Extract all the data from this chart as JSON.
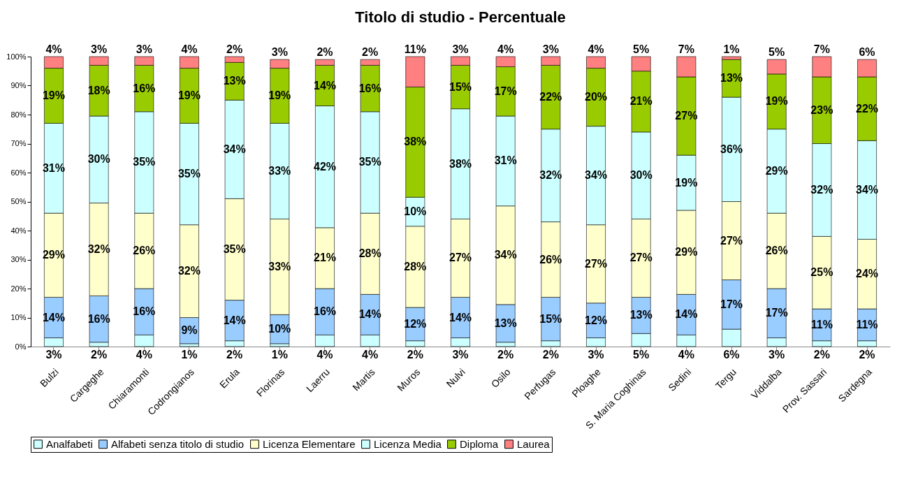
{
  "chart_data": {
    "type": "bar",
    "stacked": true,
    "title": "Titolo di studio - Percentuale",
    "legend": "bottom",
    "categories": [
      "Bulzi",
      "Cargeghe",
      "Chiaramonti",
      "Codrongianos",
      "Erula",
      "Florinas",
      "Laerru",
      "Martis",
      "Muros",
      "Nulvi",
      "Osilo",
      "Perfugas",
      "Ploaghe",
      "S. Maria Coghinas",
      "Sedini",
      "Tergu",
      "Viddalba",
      "Prov. Sassari",
      "Sardegna"
    ],
    "ylim": [
      0,
      100
    ],
    "yticks": [
      {
        "value": 0,
        "label": "0%"
      },
      {
        "value": 10,
        "label": "10%"
      },
      {
        "value": 20,
        "label": "20%"
      },
      {
        "value": 30,
        "label": "30%"
      },
      {
        "value": 40,
        "label": "40%"
      },
      {
        "value": 50,
        "label": "50%"
      },
      {
        "value": 60,
        "label": "60%"
      },
      {
        "value": 70,
        "label": "70%"
      },
      {
        "value": 80,
        "label": "80%"
      },
      {
        "value": 90,
        "label": "90%"
      },
      {
        "value": 100,
        "label": "100%"
      }
    ],
    "series": [
      {
        "name": "Analfabeti",
        "color": "#ccffff",
        "values": [
          3,
          1.5,
          4,
          1,
          2,
          1,
          4,
          4,
          2,
          3,
          1.5,
          2,
          3,
          4.5,
          4,
          6,
          3,
          2,
          2
        ],
        "value_labels": [
          "3%",
          "2%",
          "4%",
          "1%",
          "2%",
          "1%",
          "4%",
          "4%",
          "2%",
          "3%",
          "2%",
          "2%",
          "3%",
          "5%",
          "4%",
          "6%",
          "3%",
          "2%",
          "2%"
        ]
      },
      {
        "name": "Alfabeti senza titolo di studio",
        "color": "#99ccff",
        "values": [
          14,
          16,
          16,
          9,
          14,
          10,
          16,
          14,
          11.5,
          14,
          13,
          15,
          12,
          12.5,
          14,
          17,
          17,
          11,
          11
        ],
        "value_labels": [
          "14%",
          "16%",
          "16%",
          "9%",
          "14%",
          "10%",
          "16%",
          "14%",
          "12%",
          "14%",
          "13%",
          "15%",
          "12%",
          "13%",
          "14%",
          "17%",
          "17%",
          "11%",
          "11%"
        ]
      },
      {
        "name": "Licenza Elementare",
        "color": "#ffffcc",
        "values": [
          29,
          32,
          26,
          32,
          35,
          33,
          21,
          28,
          28,
          27,
          34,
          26,
          27,
          27,
          29,
          27,
          26,
          25,
          24
        ],
        "value_labels": [
          "29%",
          "32%",
          "26%",
          "32%",
          "35%",
          "33%",
          "21%",
          "28%",
          "28%",
          "27%",
          "34%",
          "26%",
          "27%",
          "27%",
          "29%",
          "27%",
          "26%",
          "25%",
          "24%"
        ]
      },
      {
        "name": "Licenza Media",
        "color": "#ccffff",
        "values": [
          31,
          30,
          35,
          35,
          34,
          33,
          42,
          35,
          10,
          38,
          31,
          32,
          34,
          30,
          19,
          36,
          29,
          32,
          34
        ],
        "value_labels": [
          "31%",
          "30%",
          "35%",
          "35%",
          "34%",
          "33%",
          "42%",
          "35%",
          "10%",
          "38%",
          "31%",
          "32%",
          "34%",
          "30%",
          "19%",
          "36%",
          "29%",
          "32%",
          "34%"
        ]
      },
      {
        "name": "Diploma",
        "color": "#99cc00",
        "values": [
          19,
          17.5,
          16,
          19,
          13,
          19,
          14,
          16,
          38,
          15,
          17,
          22,
          20,
          21,
          27,
          13,
          19,
          23,
          22
        ],
        "value_labels": [
          "19%",
          "18%",
          "16%",
          "19%",
          "13%",
          "19%",
          "14%",
          "16%",
          "38%",
          "15%",
          "17%",
          "22%",
          "20%",
          "21%",
          "27%",
          "13%",
          "19%",
          "23%",
          "22%"
        ]
      },
      {
        "name": "Laurea",
        "color": "#ff8080",
        "values": [
          4,
          3,
          3,
          4,
          2,
          3,
          2,
          2,
          10.5,
          3,
          3.5,
          3,
          4,
          5,
          7,
          1,
          5,
          7,
          6
        ],
        "value_labels": [
          "4%",
          "3%",
          "3%",
          "4%",
          "2%",
          "3%",
          "2%",
          "2%",
          "11%",
          "3%",
          "4%",
          "3%",
          "4%",
          "5%",
          "7%",
          "1%",
          "5%",
          "7%",
          "6%"
        ]
      }
    ]
  }
}
